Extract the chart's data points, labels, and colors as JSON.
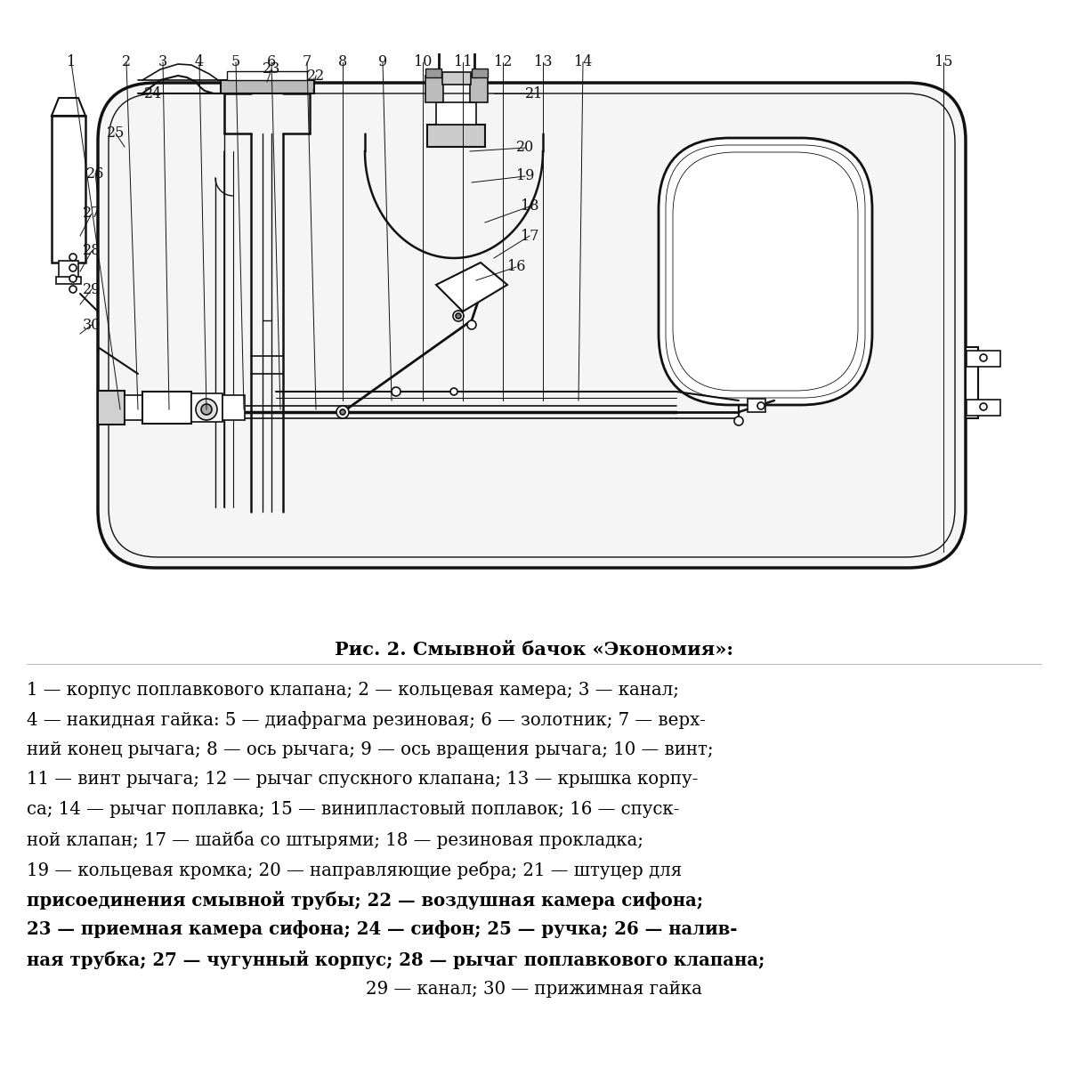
{
  "title": "Рис. 2. Смывной бачок «Экономия»:",
  "title_fontsize": 15,
  "description_lines": [
    {
      "text": "1 — корпус поплавкового клапана; 2 — кольцевая камера; 3 — канал;",
      "bold": false
    },
    {
      "text": "4 — накидная гайка: 5 — диафрагма резиновая; 6 — золотник; 7 — верх-",
      "bold": false
    },
    {
      "text": "ний конец рычага; 8 — ось рычага; 9 — ось вращения рычага; 10 — винт;",
      "bold": false
    },
    {
      "text": "11 — винт рычага; 12 — рычаг спускного клапана; 13 — крышка корпу-",
      "bold": false
    },
    {
      "text": "са; 14 — рычаг поплавка; 15 — винипластовый поплавок; 16 — спуск-",
      "bold": false
    },
    {
      "text": "ной клапан; 17 — шайба со штырями; 18 — резиновая прокладка;",
      "bold": false
    },
    {
      "text": "19 — кольцевая кромка; 20 — направляющие ребра; 21 — штуцер для",
      "bold": false
    },
    {
      "text": "присоединения смывной трубы; 22 — воздушная камера сифона;",
      "bold": true
    },
    {
      "text": "23 — приемная камера сифона; 24 — сифон; 25 — ручка; 26 — налив-",
      "bold": true
    },
    {
      "text": "ная трубка; 27 — чугунный корпус; 28 — рычаг поплавкового клапана;",
      "bold": true
    },
    {
      "text": "29 — канал; 30 — прижимная гайка",
      "bold": false,
      "center": true
    }
  ],
  "desc_fontsize": 14.2,
  "line_color": "#111111",
  "bg_color": "#ffffff"
}
